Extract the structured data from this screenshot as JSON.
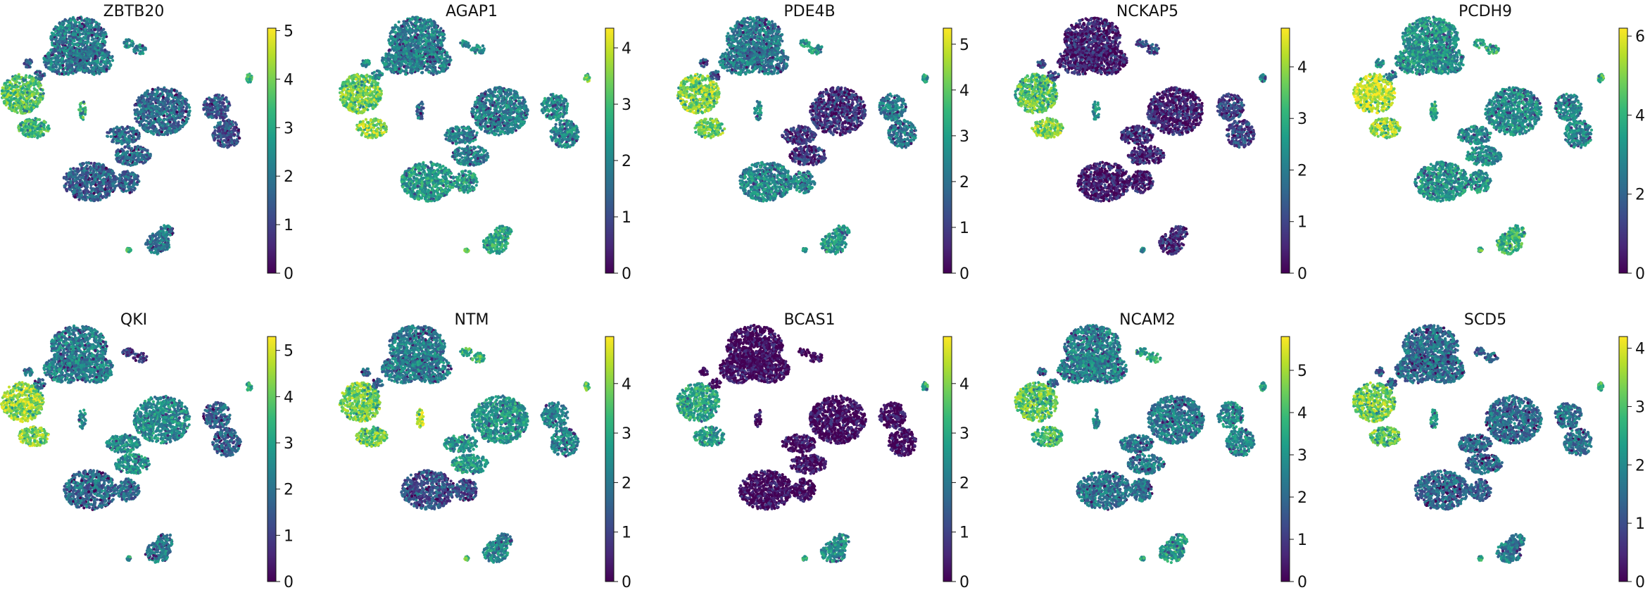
{
  "figure": {
    "type": "umap-feature-grid",
    "cmap": "viridis",
    "rows": 2,
    "cols": 5
  },
  "chart_data": [
    {
      "type": "scatter",
      "title": "ZBTB20",
      "color_range": [
        0,
        5.05
      ],
      "colorbar_ticks": [
        "0",
        "1",
        "2",
        "3",
        "4",
        "5"
      ],
      "cluster_levels": {
        "A": 2.1,
        "B": 1.8,
        "C": 3.7,
        "D": 3.4,
        "E": 1.6,
        "F": 1.4,
        "G": 2.0,
        "H": 2.3,
        "I": 1.5,
        "J": 3.3,
        "K": 3.5
      }
    },
    {
      "type": "scatter",
      "title": "AGAP1",
      "color_range": [
        0,
        4.35
      ],
      "colorbar_ticks": [
        "0",
        "1",
        "2",
        "3",
        "4"
      ],
      "cluster_levels": {
        "A": 1.9,
        "B": 1.9,
        "C": 3.4,
        "D": 3.6,
        "E": 2.4,
        "F": 2.1,
        "G": 2.6,
        "H": 2.1,
        "I": 2.0,
        "J": 1.6,
        "K": 3.3
      }
    },
    {
      "type": "scatter",
      "title": "PDE4B",
      "color_range": [
        0,
        5.35
      ],
      "colorbar_ticks": [
        "0",
        "1",
        "2",
        "3",
        "4",
        "5"
      ],
      "cluster_levels": {
        "A": 2.2,
        "B": 0.9,
        "C": 4.4,
        "D": 4.1,
        "E": 2.5,
        "F": 2.2,
        "G": 2.9,
        "H": 2.8,
        "I": 1.4,
        "J": 2.7,
        "K": 3.0
      }
    },
    {
      "type": "scatter",
      "title": "NCKAP5",
      "color_range": [
        0,
        4.75
      ],
      "colorbar_ticks": [
        "0",
        "1",
        "2",
        "3",
        "4"
      ],
      "cluster_levels": {
        "A": 0.5,
        "B": 0.6,
        "C": 3.5,
        "D": 3.9,
        "E": 0.4,
        "F": 1.0,
        "G": 0.6,
        "H": 1.2,
        "I": 1.0,
        "J": 2.4,
        "K": 2.3
      }
    },
    {
      "type": "scatter",
      "title": "PCDH9",
      "color_range": [
        0,
        6.2
      ],
      "colorbar_ticks": [
        "0",
        "2",
        "4",
        "6"
      ],
      "cluster_levels": {
        "A": 3.2,
        "B": 3.0,
        "C": 5.8,
        "D": 5.2,
        "E": 3.3,
        "F": 2.9,
        "G": 4.0,
        "H": 3.8,
        "I": 3.0,
        "J": 3.7,
        "K": 4.2
      }
    },
    {
      "type": "scatter",
      "title": "QKI",
      "color_range": [
        0,
        5.3
      ],
      "colorbar_ticks": [
        "0",
        "1",
        "2",
        "3",
        "4",
        "5"
      ],
      "cluster_levels": {
        "A": 2.3,
        "B": 2.6,
        "C": 4.5,
        "D": 4.4,
        "E": 1.9,
        "F": 1.7,
        "G": 2.2,
        "H": 0.9,
        "I": 2.1,
        "J": 2.6,
        "K": 3.0
      }
    },
    {
      "type": "scatter",
      "title": "NTM",
      "color_range": [
        0,
        4.95
      ],
      "colorbar_ticks": [
        "0",
        "1",
        "2",
        "3",
        "4"
      ],
      "cluster_levels": {
        "A": 2.1,
        "B": 2.6,
        "C": 3.9,
        "D": 3.8,
        "E": 1.3,
        "F": 2.2,
        "G": 2.4,
        "H": 3.2,
        "I": 1.8,
        "J": 4.4,
        "K": 3.6
      }
    },
    {
      "type": "scatter",
      "title": "BCAS1",
      "color_range": [
        0,
        4.95
      ],
      "colorbar_ticks": [
        "0",
        "1",
        "2",
        "3",
        "4"
      ],
      "cluster_levels": {
        "A": 0.1,
        "B": 0.1,
        "C": 2.9,
        "D": 2.8,
        "E": 0.1,
        "F": 0.1,
        "G": 2.5,
        "H": 0.1,
        "I": 0.1,
        "J": 0.2,
        "K": 2.9
      }
    },
    {
      "type": "scatter",
      "title": "NCAM2",
      "color_range": [
        0,
        5.8
      ],
      "colorbar_ticks": [
        "0",
        "1",
        "2",
        "3",
        "4",
        "5"
      ],
      "cluster_levels": {
        "A": 2.6,
        "B": 2.4,
        "C": 4.3,
        "D": 4.0,
        "E": 2.3,
        "F": 2.7,
        "G": 3.2,
        "H": 3.6,
        "I": 2.1,
        "J": 2.9,
        "K": 3.3
      }
    },
    {
      "type": "scatter",
      "title": "SCD5",
      "color_range": [
        0,
        4.2
      ],
      "colorbar_ticks": [
        "0",
        "1",
        "2",
        "3",
        "4"
      ],
      "cluster_levels": {
        "A": 1.6,
        "B": 1.5,
        "C": 3.3,
        "D": 3.2,
        "E": 1.4,
        "F": 1.6,
        "G": 1.8,
        "H": 1.4,
        "I": 1.2,
        "J": 2.2,
        "K": 2.6
      }
    }
  ]
}
